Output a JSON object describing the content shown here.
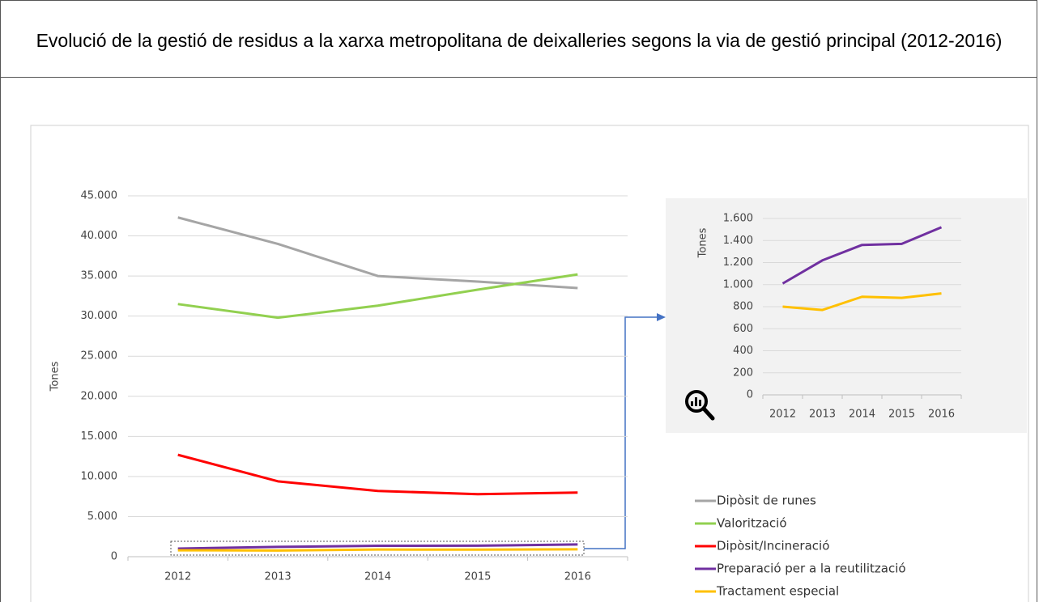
{
  "chart_data": [
    {
      "type": "line",
      "title": "Evolució de la gestió de residus a la xarxa metropolitana de deixalleries segons la via de gestió principal (2012-2016)",
      "y_label": "Tones",
      "categories": [
        "2012",
        "2013",
        "2014",
        "2015",
        "2016"
      ],
      "ylim": [
        0,
        45000
      ],
      "yticks": [
        0,
        {
          "value": 5000,
          "label": "5.000"
        },
        {
          "value": 10000,
          "label": "10.000"
        },
        {
          "value": 15000,
          "label": "15.000"
        },
        {
          "value": 20000,
          "label": "20.000"
        },
        {
          "value": 25000,
          "label": "25.000"
        },
        {
          "value": 30000,
          "label": "30.000"
        },
        {
          "value": 35000,
          "label": "35.000"
        },
        {
          "value": 40000,
          "label": "40.000"
        },
        {
          "value": 45000,
          "label": "45.000"
        }
      ],
      "grid": true,
      "legend": "right",
      "series": [
        {
          "name": "Dipòsit de runes",
          "color": "#a5a5a5",
          "values": [
            42300,
            39000,
            35000,
            34300,
            33500
          ]
        },
        {
          "name": "Valorització",
          "color": "#92d050",
          "values": [
            31500,
            29800,
            31300,
            33300,
            35200
          ]
        },
        {
          "name": "Dipòsit/Incineració",
          "color": "#ff0000",
          "values": [
            12700,
            9400,
            8200,
            7800,
            8000
          ]
        },
        {
          "name": "Preparació per a la reutilització",
          "color": "#7030a0",
          "values": [
            1010,
            1220,
            1360,
            1370,
            1520
          ]
        },
        {
          "name": "Tractament especial",
          "color": "#ffc000",
          "values": [
            800,
            770,
            890,
            880,
            920
          ]
        }
      ]
    },
    {
      "type": "line",
      "y_label": "Tones",
      "categories": [
        "2012",
        "2013",
        "2014",
        "2015",
        "2016"
      ],
      "ylim": [
        0,
        1600
      ],
      "yticks": [
        0,
        200,
        400,
        600,
        800,
        {
          "value": 1000,
          "label": "1.000"
        },
        {
          "value": 1200,
          "label": "1.200"
        },
        {
          "value": 1400,
          "label": "1.400"
        },
        {
          "value": 1600,
          "label": "1.600"
        }
      ],
      "grid": true,
      "series": [
        {
          "color": "#7030a0",
          "values": [
            1010,
            1220,
            1360,
            1370,
            1520
          ]
        },
        {
          "color": "#ffc000",
          "values": [
            800,
            770,
            890,
            880,
            920
          ]
        }
      ]
    }
  ]
}
